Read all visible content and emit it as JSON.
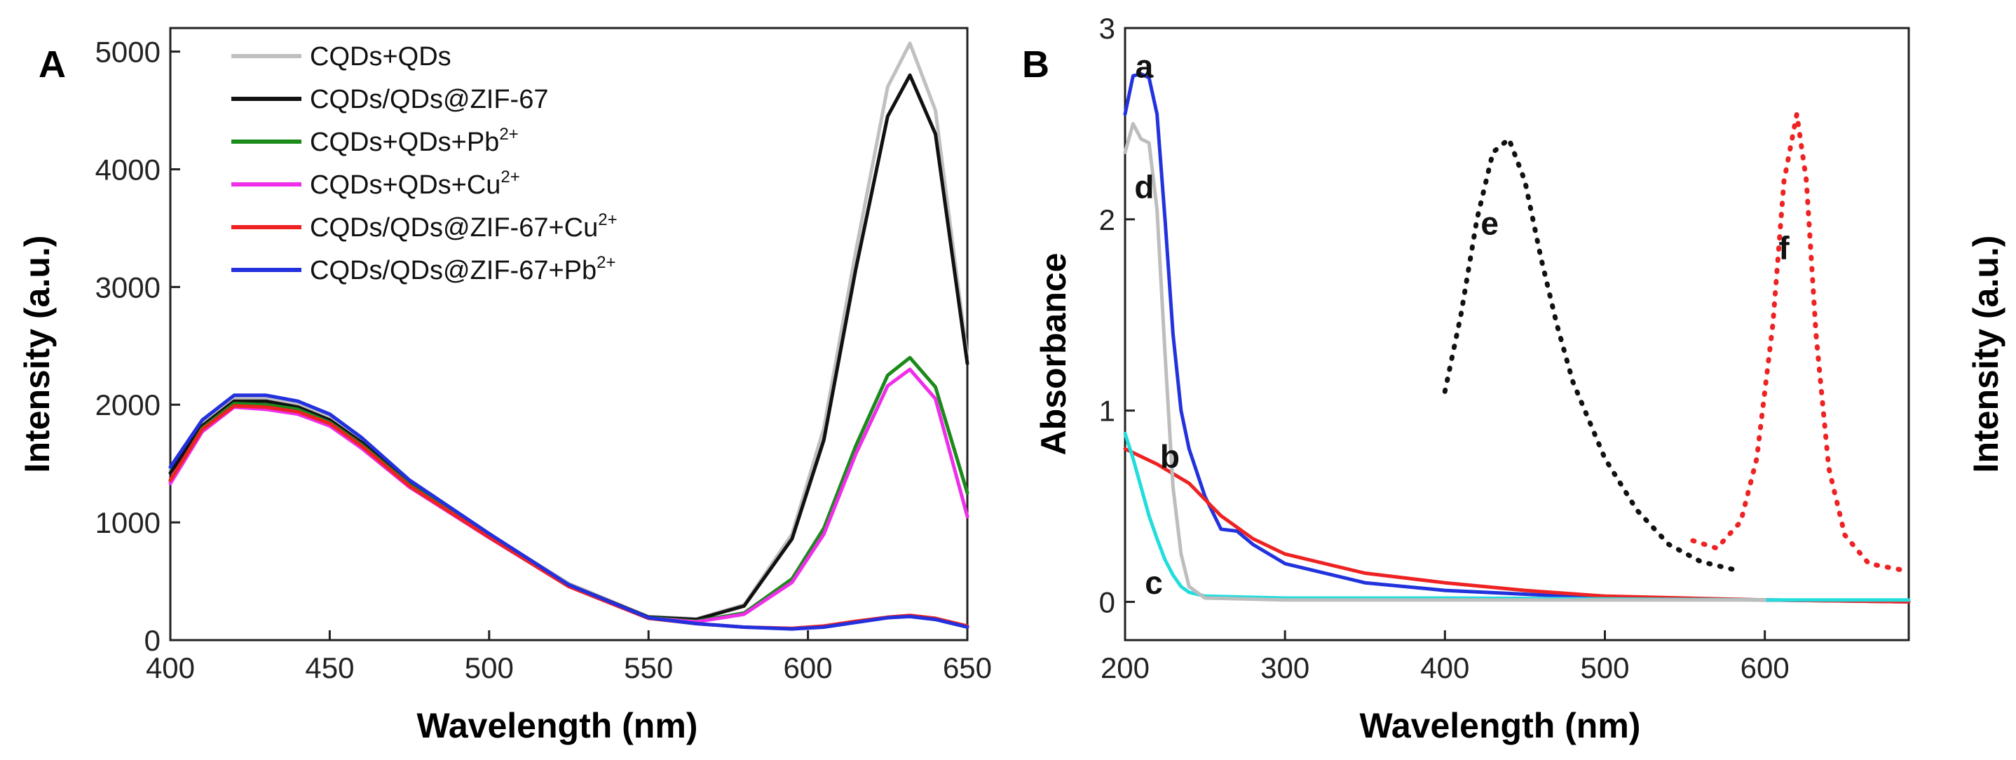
{
  "chart_data": [
    {
      "type": "line",
      "panel_label": "A",
      "xlabel": "Wavelength (nm)",
      "ylabel": "Intensity (a.u.)",
      "xlim": [
        400,
        650
      ],
      "ylim": [
        0,
        5200
      ],
      "xticks": [
        400,
        450,
        500,
        550,
        600,
        650
      ],
      "yticks": [
        0,
        1000,
        2000,
        3000,
        4000,
        5000
      ],
      "legend_position": "top-left",
      "series": [
        {
          "name": "CQDs+QDs",
          "legend_base": "CQDs+QDs",
          "legend_sup": "",
          "color": "#c0c0c0",
          "x": [
            400,
            410,
            420,
            430,
            440,
            450,
            460,
            475,
            500,
            525,
            550,
            565,
            580,
            595,
            605,
            615,
            625,
            632,
            640,
            650
          ],
          "y": [
            1450,
            1850,
            2060,
            2060,
            2010,
            1900,
            1700,
            1350,
            900,
            480,
            200,
            180,
            300,
            900,
            1800,
            3300,
            4700,
            5070,
            4500,
            2400
          ]
        },
        {
          "name": "CQDs/QDs@ZIF-67",
          "legend_base": "CQDs/QDs@ZIF-67",
          "legend_sup": "",
          "color": "#111111",
          "x": [
            400,
            410,
            420,
            430,
            440,
            450,
            460,
            475,
            500,
            525,
            550,
            565,
            580,
            595,
            605,
            615,
            625,
            632,
            640,
            650
          ],
          "y": [
            1420,
            1820,
            2030,
            2030,
            1980,
            1870,
            1680,
            1330,
            890,
            470,
            195,
            175,
            290,
            860,
            1700,
            3150,
            4450,
            4800,
            4300,
            2350
          ]
        },
        {
          "name": "CQDs+QDs+Pb2+",
          "legend_base": "CQDs+QDs+Pb",
          "legend_sup": "2+",
          "color": "#1a8a1a",
          "x": [
            400,
            410,
            420,
            430,
            440,
            450,
            460,
            475,
            500,
            525,
            550,
            565,
            580,
            595,
            605,
            615,
            625,
            632,
            640,
            650
          ],
          "y": [
            1350,
            1800,
            2010,
            2000,
            1960,
            1850,
            1660,
            1320,
            880,
            460,
            190,
            160,
            230,
            520,
            950,
            1650,
            2250,
            2400,
            2150,
            1250
          ]
        },
        {
          "name": "CQDs+QDs+Cu2+",
          "legend_base": "CQDs+QDs+Cu",
          "legend_sup": "2+",
          "color": "#ee2ee8",
          "x": [
            400,
            410,
            420,
            430,
            440,
            450,
            460,
            475,
            500,
            525,
            550,
            565,
            580,
            595,
            605,
            615,
            625,
            632,
            640,
            650
          ],
          "y": [
            1330,
            1770,
            1980,
            1960,
            1920,
            1820,
            1630,
            1300,
            870,
            455,
            185,
            155,
            220,
            490,
            900,
            1580,
            2160,
            2300,
            2050,
            1050
          ]
        },
        {
          "name": "CQDs/QDs@ZIF-67+Cu2+",
          "legend_base": "CQDs/QDs@ZIF-67+Cu",
          "legend_sup": "2+",
          "color": "#ee2222",
          "x": [
            400,
            410,
            420,
            430,
            440,
            450,
            460,
            475,
            500,
            525,
            550,
            565,
            580,
            595,
            605,
            615,
            625,
            632,
            640,
            650
          ],
          "y": [
            1360,
            1790,
            1990,
            1980,
            1940,
            1840,
            1650,
            1310,
            875,
            455,
            185,
            140,
            110,
            100,
            120,
            160,
            195,
            210,
            185,
            120
          ]
        },
        {
          "name": "CQDs/QDs@ZIF-67+Pb2+",
          "legend_base": "CQDs/QDs@ZIF-67+Pb",
          "legend_sup": "2+",
          "color": "#2230dd",
          "x": [
            400,
            410,
            420,
            430,
            440,
            450,
            460,
            475,
            500,
            525,
            550,
            565,
            580,
            595,
            605,
            615,
            625,
            632,
            640,
            650
          ],
          "y": [
            1470,
            1870,
            2080,
            2080,
            2030,
            1920,
            1720,
            1360,
            905,
            470,
            190,
            140,
            110,
            95,
            110,
            150,
            190,
            200,
            175,
            110
          ]
        }
      ]
    },
    {
      "type": "line",
      "panel_label": "B",
      "xlabel": "Wavelength (nm)",
      "ylabel": "Absorbance",
      "ylabel_right": "Intensity (a.u.)",
      "xlim": [
        200,
        690
      ],
      "ylim": [
        -0.2,
        3.0
      ],
      "xticks": [
        200,
        300,
        400,
        500,
        600
      ],
      "yticks": [
        0,
        1,
        2,
        3
      ],
      "series": [
        {
          "name": "a",
          "label": "a",
          "color": "#2233dd",
          "style": "solid",
          "label_at": [
            212,
            2.8
          ],
          "x": [
            200,
            205,
            210,
            215,
            220,
            225,
            230,
            235,
            240,
            250,
            260,
            270,
            280,
            300,
            350,
            400,
            450,
            500,
            600,
            690
          ],
          "y": [
            2.55,
            2.75,
            2.76,
            2.74,
            2.55,
            2.0,
            1.4,
            1.0,
            0.8,
            0.55,
            0.38,
            0.37,
            0.3,
            0.2,
            0.1,
            0.06,
            0.04,
            0.02,
            0.01,
            0.0
          ]
        },
        {
          "name": "b",
          "label": "b",
          "color": "#ee2222",
          "style": "solid",
          "label_at": [
            228,
            0.76
          ],
          "x": [
            200,
            220,
            240,
            260,
            280,
            300,
            350,
            400,
            450,
            500,
            550,
            600,
            650,
            690
          ],
          "y": [
            0.8,
            0.72,
            0.62,
            0.45,
            0.33,
            0.25,
            0.15,
            0.1,
            0.06,
            0.03,
            0.02,
            0.01,
            0.005,
            0.0
          ]
        },
        {
          "name": "c",
          "label": "c",
          "color": "#22dddd",
          "style": "solid",
          "label_at": [
            218,
            0.1
          ],
          "x": [
            200,
            205,
            210,
            215,
            220,
            225,
            230,
            235,
            240,
            250,
            300,
            400,
            500,
            600,
            690
          ],
          "y": [
            0.88,
            0.75,
            0.6,
            0.45,
            0.33,
            0.22,
            0.14,
            0.08,
            0.05,
            0.03,
            0.02,
            0.02,
            0.015,
            0.01,
            0.01
          ]
        },
        {
          "name": "d",
          "label": "d",
          "color": "#bdbdbd",
          "style": "solid",
          "label_at": [
            212,
            2.17
          ],
          "x": [
            200,
            205,
            210,
            215,
            220,
            225,
            230,
            235,
            240,
            250,
            300,
            400,
            500,
            600
          ],
          "y": [
            2.35,
            2.5,
            2.42,
            2.4,
            2.05,
            1.3,
            0.6,
            0.25,
            0.08,
            0.02,
            0.01,
            0.01,
            0.01,
            0.01
          ]
        },
        {
          "name": "e",
          "label": "e",
          "color": "#111111",
          "style": "dotted",
          "label_at": [
            428,
            1.98
          ],
          "x": [
            400,
            410,
            420,
            430,
            440,
            450,
            460,
            470,
            480,
            500,
            520,
            540,
            560,
            580
          ],
          "y": [
            1.1,
            1.5,
            2.0,
            2.35,
            2.42,
            2.2,
            1.8,
            1.45,
            1.15,
            0.75,
            0.48,
            0.3,
            0.21,
            0.17
          ]
        },
        {
          "name": "f",
          "label": "f",
          "color": "#ee2222",
          "style": "dotted",
          "label_at": [
            612,
            1.85
          ],
          "x": [
            555,
            570,
            585,
            595,
            605,
            612,
            620,
            626,
            632,
            640,
            650,
            665,
            690
          ],
          "y": [
            0.32,
            0.28,
            0.42,
            0.75,
            1.45,
            2.2,
            2.55,
            2.2,
            1.4,
            0.7,
            0.35,
            0.2,
            0.16
          ]
        }
      ]
    }
  ]
}
